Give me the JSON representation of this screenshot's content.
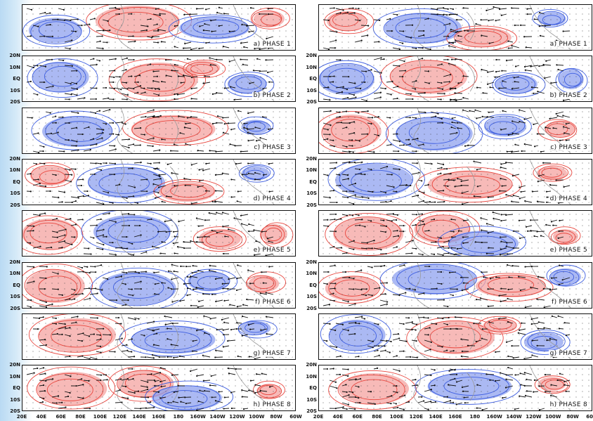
{
  "columns": [
    {
      "id": "left",
      "panels": [
        {
          "label": "a) PHASE 1"
        },
        {
          "label": "b) PHASE 2"
        },
        {
          "label": "c) PHASE 3"
        },
        {
          "label": "d) PHASE 4"
        },
        {
          "label": "e) PHASE 5"
        },
        {
          "label": "f) PHASE 6"
        },
        {
          "label": "g) PHASE 7"
        },
        {
          "label": "h) PHASE 8"
        }
      ]
    },
    {
      "id": "right",
      "panels": [
        {
          "label": "a) PHASE 1"
        },
        {
          "label": "b) PHASE 2"
        },
        {
          "label": "c) PHASE 3"
        },
        {
          "label": "d) PHASE 4"
        },
        {
          "label": "e) PHASE 5"
        },
        {
          "label": "f) PHASE 6"
        },
        {
          "label": "g) PHASE 7"
        },
        {
          "label": "h) PHASE 8"
        }
      ]
    }
  ],
  "lat_ticks": [
    "20N",
    "10N",
    "EQ",
    "10S",
    "20S"
  ],
  "lon_ticks": [
    "20E",
    "40E",
    "60E",
    "80E",
    "100E",
    "120E",
    "140E",
    "160E",
    "180",
    "160W",
    "140W",
    "120W",
    "100W",
    "80W",
    "60W"
  ],
  "colors": {
    "positive": "#e8473f",
    "positive_fill": "#f4a3a0",
    "negative": "#3f5fe0",
    "negative_fill": "#8fa2ef",
    "vector": "#111111",
    "coast": "#9a9a9a"
  }
}
